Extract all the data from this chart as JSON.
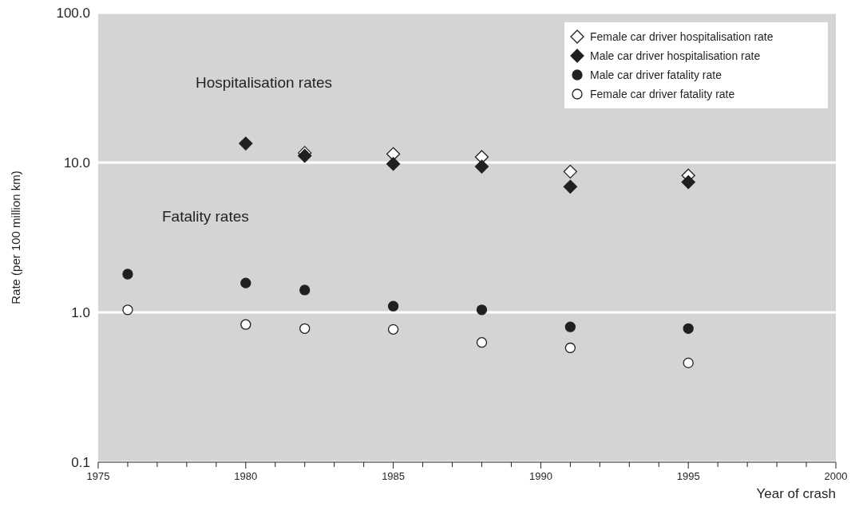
{
  "chart_data": {
    "type": "scatter",
    "xlabel": "Year of crash",
    "ylabel": "Rate (per 100 million km)",
    "log": "y",
    "xlim": [
      1975,
      2000
    ],
    "xticks": [
      1975,
      {
        "value": 1976,
        "label": null
      },
      {
        "value": 1977,
        "label": null
      },
      {
        "value": 1978,
        "label": null
      },
      {
        "value": 1979,
        "label": null
      },
      1980,
      {
        "value": 1981,
        "label": null
      },
      {
        "value": 1982,
        "label": null
      },
      {
        "value": 1983,
        "label": null
      },
      {
        "value": 1984,
        "label": null
      },
      1985,
      {
        "value": 1986,
        "label": null
      },
      {
        "value": 1987,
        "label": null
      },
      {
        "value": 1988,
        "label": null
      },
      {
        "value": 1989,
        "label": null
      },
      1990,
      {
        "value": 1991,
        "label": null
      },
      {
        "value": 1992,
        "label": null
      },
      {
        "value": 1993,
        "label": null
      },
      {
        "value": 1994,
        "label": null
      },
      1995,
      {
        "value": 1996,
        "label": null
      },
      {
        "value": 1997,
        "label": null
      },
      {
        "value": 1998,
        "label": null
      },
      {
        "value": 1999,
        "label": null
      },
      2000
    ],
    "ylim": [
      0.1,
      100
    ],
    "yticks": [
      {
        "value": 0.1,
        "label": "0.1"
      },
      {
        "value": 1,
        "label": "1.0"
      },
      {
        "value": 10,
        "label": "10.0"
      },
      {
        "value": 100,
        "label": "100.0"
      }
    ],
    "grid": "y",
    "legend": "top right",
    "annotations": [
      "Hospitalisation rates",
      "Fatality rates"
    ],
    "series": [
      {
        "name": "Female car driver hospitalisation rate",
        "color": "#ffffff",
        "marker": "diamond",
        "x": [
          1982,
          1985,
          1988,
          1991,
          1995
        ],
        "values": [
          11.6,
          11.4,
          10.9,
          8.7,
          8.2
        ]
      },
      {
        "name": "Male car driver hospitalisation rate",
        "color": "#231f20",
        "marker": "diamond",
        "x": [
          1980,
          1982,
          1985,
          1988,
          1991,
          1995
        ],
        "values": [
          13.4,
          11.1,
          9.8,
          9.4,
          6.9,
          7.4
        ]
      },
      {
        "name": "Male car driver fatality rate",
        "color": "#231f20",
        "marker": "circle",
        "x": [
          1976,
          1980,
          1982,
          1985,
          1988,
          1991,
          1995
        ],
        "values": [
          1.8,
          1.57,
          1.41,
          1.1,
          1.04,
          0.8,
          0.78
        ]
      },
      {
        "name": "Female car driver fatality rate",
        "color": "#ffffff",
        "marker": "circle",
        "x": [
          1976,
          1980,
          1982,
          1985,
          1988,
          1991,
          1995
        ],
        "values": [
          1.04,
          0.83,
          0.78,
          0.77,
          0.63,
          0.58,
          0.46
        ]
      }
    ]
  }
}
